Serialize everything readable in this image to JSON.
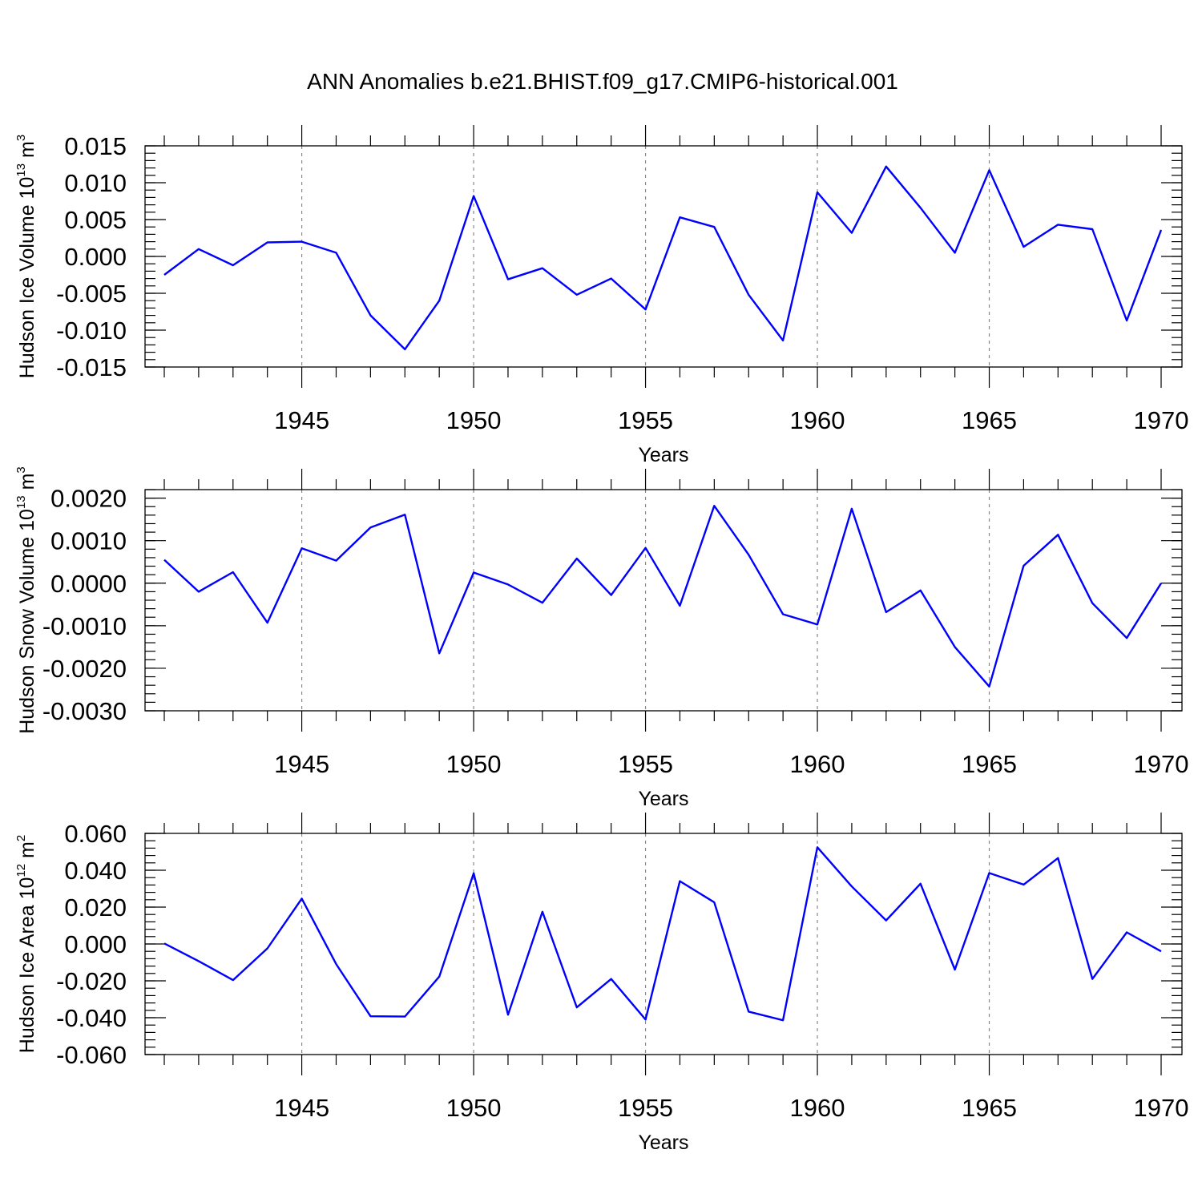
{
  "title": "ANN Anomalies b.e21.BHIST.f09_g17.CMIP6-historical.001",
  "colors": {
    "series": "#0000ff",
    "axis": "#000000",
    "grid": "#888888"
  },
  "chart_data": [
    {
      "type": "line",
      "ylabel_main": "Hudson Ice Volume 10",
      "ylabel_exp": "13",
      "ylabel_unit": " m",
      "ylabel_unit_exp": "3",
      "xlabel": "Years",
      "xlim": [
        1941,
        1970
      ],
      "ylim": [
        -0.015,
        0.015
      ],
      "x_ticks": [
        1945,
        1950,
        1955,
        1960,
        1965,
        1970
      ],
      "y_ticks": [
        -0.015,
        -0.01,
        -0.005,
        0.0,
        0.005,
        0.01,
        0.015
      ],
      "y_tick_labels": [
        "-0.015",
        "-0.010",
        "-0.005",
        "0.000",
        "0.005",
        "0.010",
        "0.015"
      ],
      "y_minor_step": 0.001,
      "grid": "dashed vertical at major x ticks",
      "x": [
        1941,
        1942,
        1943,
        1944,
        1945,
        1946,
        1947,
        1948,
        1949,
        1950,
        1951,
        1952,
        1953,
        1954,
        1955,
        1956,
        1957,
        1958,
        1959,
        1960,
        1961,
        1962,
        1963,
        1964,
        1965,
        1966,
        1967,
        1968,
        1969,
        1970
      ],
      "values": [
        -0.0025,
        0.001,
        -0.0012,
        0.0019,
        0.002,
        0.0005,
        -0.008,
        -0.0126,
        -0.006,
        0.0082,
        -0.0031,
        -0.0016,
        -0.0052,
        -0.003,
        -0.0072,
        0.0053,
        0.004,
        -0.0052,
        -0.0114,
        0.0087,
        0.0032,
        0.0122,
        0.0066,
        0.0005,
        0.0117,
        0.0013,
        0.0043,
        0.0037,
        -0.0087,
        0.0036
      ]
    },
    {
      "type": "line",
      "ylabel_main": "Hudson Snow Volume 10",
      "ylabel_exp": "13",
      "ylabel_unit": " m",
      "ylabel_unit_exp": "3",
      "xlabel": "Years",
      "xlim": [
        1941,
        1970
      ],
      "ylim": [
        -0.003,
        0.0022
      ],
      "x_ticks": [
        1945,
        1950,
        1955,
        1960,
        1965,
        1970
      ],
      "y_ticks": [
        -0.003,
        -0.002,
        -0.001,
        0.0,
        0.001,
        0.002
      ],
      "y_tick_labels": [
        "-0.0030",
        "-0.0020",
        "-0.0010",
        "0.0000",
        "0.0010",
        "0.0020"
      ],
      "y_minor_step": 0.0002,
      "grid": "dashed vertical at major x ticks",
      "x": [
        1941,
        1942,
        1943,
        1944,
        1945,
        1946,
        1947,
        1948,
        1949,
        1950,
        1951,
        1952,
        1953,
        1954,
        1955,
        1956,
        1957,
        1958,
        1959,
        1960,
        1961,
        1962,
        1963,
        1964,
        1965,
        1966,
        1967,
        1968,
        1969,
        1970
      ],
      "values": [
        0.00055,
        -0.0002,
        0.00026,
        -0.00093,
        0.00082,
        0.00053,
        0.00131,
        0.00161,
        -0.00165,
        0.00025,
        -3e-05,
        -0.00046,
        0.00058,
        -0.00028,
        0.00083,
        -0.00053,
        0.00182,
        0.00067,
        -0.00073,
        -0.00097,
        0.00175,
        -0.00068,
        -0.00017,
        -0.0015,
        -0.00243,
        0.00041,
        0.00114,
        -0.00047,
        -0.00129,
        0.0
      ]
    },
    {
      "type": "line",
      "ylabel_main": "Hudson Ice Area 10",
      "ylabel_exp": "12",
      "ylabel_unit": " m",
      "ylabel_unit_exp": "2",
      "xlabel": "Years",
      "xlim": [
        1941,
        1970
      ],
      "ylim": [
        -0.06,
        0.06
      ],
      "x_ticks": [
        1945,
        1950,
        1955,
        1960,
        1965,
        1970
      ],
      "y_ticks": [
        -0.06,
        -0.04,
        -0.02,
        0.0,
        0.02,
        0.04,
        0.06
      ],
      "y_tick_labels": [
        "-0.060",
        "-0.040",
        "-0.020",
        "0.000",
        "0.020",
        "0.040",
        "0.060"
      ],
      "y_minor_step": 0.004,
      "grid": "dashed vertical at major x ticks",
      "x": [
        1941,
        1942,
        1943,
        1944,
        1945,
        1946,
        1947,
        1948,
        1949,
        1950,
        1951,
        1952,
        1953,
        1954,
        1955,
        1956,
        1957,
        1958,
        1959,
        1960,
        1961,
        1962,
        1963,
        1964,
        1965,
        1966,
        1967,
        1968,
        1969,
        1970
      ],
      "values": [
        0.0003,
        -0.0093,
        -0.0196,
        -0.0024,
        0.0246,
        -0.0109,
        -0.0392,
        -0.0394,
        -0.0177,
        0.0384,
        -0.0384,
        0.0175,
        -0.0344,
        -0.019,
        -0.041,
        0.0341,
        0.0226,
        -0.0367,
        -0.0414,
        0.0525,
        0.0312,
        0.0128,
        0.0327,
        -0.0139,
        0.0385,
        0.0322,
        0.0466,
        -0.019,
        0.0063,
        -0.004
      ]
    }
  ]
}
